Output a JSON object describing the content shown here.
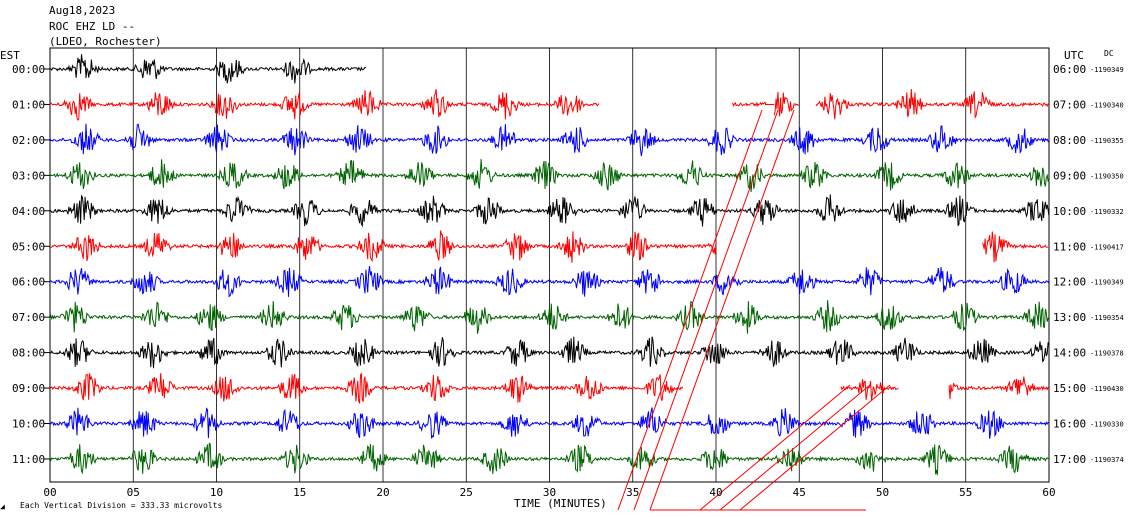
{
  "header": {
    "date": "Aug18,2023",
    "station": "ROC EHZ LD --",
    "network": "(LDEO, Rochester)"
  },
  "chart_data": {
    "type": "line",
    "title": "",
    "xlabel": "TIME (MINUTES)",
    "left_axis_label": "EST",
    "right_axis_label": "UTC",
    "dc_label": "DC",
    "xlim": [
      0,
      60
    ],
    "x_ticks": [
      "00",
      "05",
      "10",
      "15",
      "20",
      "25",
      "30",
      "35",
      "40",
      "45",
      "50",
      "55",
      "60"
    ],
    "footer_note": "Each Vertical Division =  333.33 microvolts",
    "trace_colors": [
      "#000000",
      "#ff0000",
      "#0000ff",
      "#006400"
    ],
    "rows": [
      {
        "est": "00:00",
        "utc": "06:00",
        "dc": "-1190349",
        "color": "#000000",
        "segments": [
          [
            0,
            19
          ]
        ]
      },
      {
        "est": "01:00",
        "utc": "07:00",
        "dc": "-1190340",
        "color": "#ff0000",
        "segments": [
          [
            0,
            33
          ],
          [
            41,
            43
          ],
          [
            43.5,
            45
          ],
          [
            46,
            60
          ]
        ]
      },
      {
        "est": "02:00",
        "utc": "08:00",
        "dc": "-1190355",
        "color": "#0000ff",
        "segments": [
          [
            0,
            60
          ]
        ]
      },
      {
        "est": "03:00",
        "utc": "09:00",
        "dc": "-1190350",
        "color": "#006400",
        "segments": [
          [
            0,
            60
          ]
        ]
      },
      {
        "est": "04:00",
        "utc": "10:00",
        "dc": "-1190332",
        "color": "#000000",
        "segments": [
          [
            0,
            60
          ]
        ]
      },
      {
        "est": "05:00",
        "utc": "11:00",
        "dc": "-1190417",
        "color": "#ff0000",
        "segments": [
          [
            0,
            40
          ],
          [
            56,
            60
          ]
        ]
      },
      {
        "est": "06:00",
        "utc": "12:00",
        "dc": "-1190349",
        "color": "#0000ff",
        "segments": [
          [
            0,
            60
          ]
        ]
      },
      {
        "est": "07:00",
        "utc": "13:00",
        "dc": "-1190354",
        "color": "#006400",
        "segments": [
          [
            0,
            60
          ]
        ]
      },
      {
        "est": "08:00",
        "utc": "14:00",
        "dc": "-1190378",
        "color": "#000000",
        "segments": [
          [
            0,
            60
          ]
        ]
      },
      {
        "est": "09:00",
        "utc": "15:00",
        "dc": "-1190430",
        "color": "#ff0000",
        "segments": [
          [
            0,
            38
          ],
          [
            47.5,
            51
          ],
          [
            54,
            60
          ]
        ]
      },
      {
        "est": "10:00",
        "utc": "16:00",
        "dc": "-1190330",
        "color": "#0000ff",
        "segments": [
          [
            0,
            60
          ]
        ]
      },
      {
        "est": "11:00",
        "utc": "17:00",
        "dc": "-1190374",
        "color": "#006400",
        "segments": [
          [
            0,
            60
          ]
        ]
      }
    ]
  }
}
